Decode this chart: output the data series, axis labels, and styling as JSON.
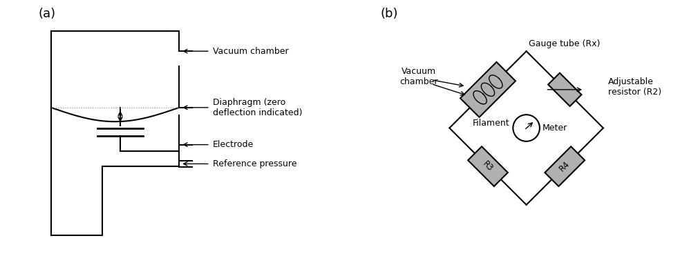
{
  "bg_color": "#ffffff",
  "label_a": "(a)",
  "label_b": "(b)",
  "lc": "#000000",
  "gray": "#999999",
  "light_gray": "#b0b0b0",
  "labels": {
    "vacuum_chamber": "Vacuum chamber",
    "diaphragm": "Diaphragm (zero\ndeflection indicated)",
    "electrode": "Electrode",
    "reference": "Reference pressure",
    "vacuum_chamber_b": "Vacuum\nchamber",
    "filament": "Filament",
    "gauge_tube": "Gauge tube (Rx)",
    "adjustable": "Adjustable\nresistor (R2)",
    "meter": "Meter",
    "r3": "R3",
    "r4": "R4"
  }
}
